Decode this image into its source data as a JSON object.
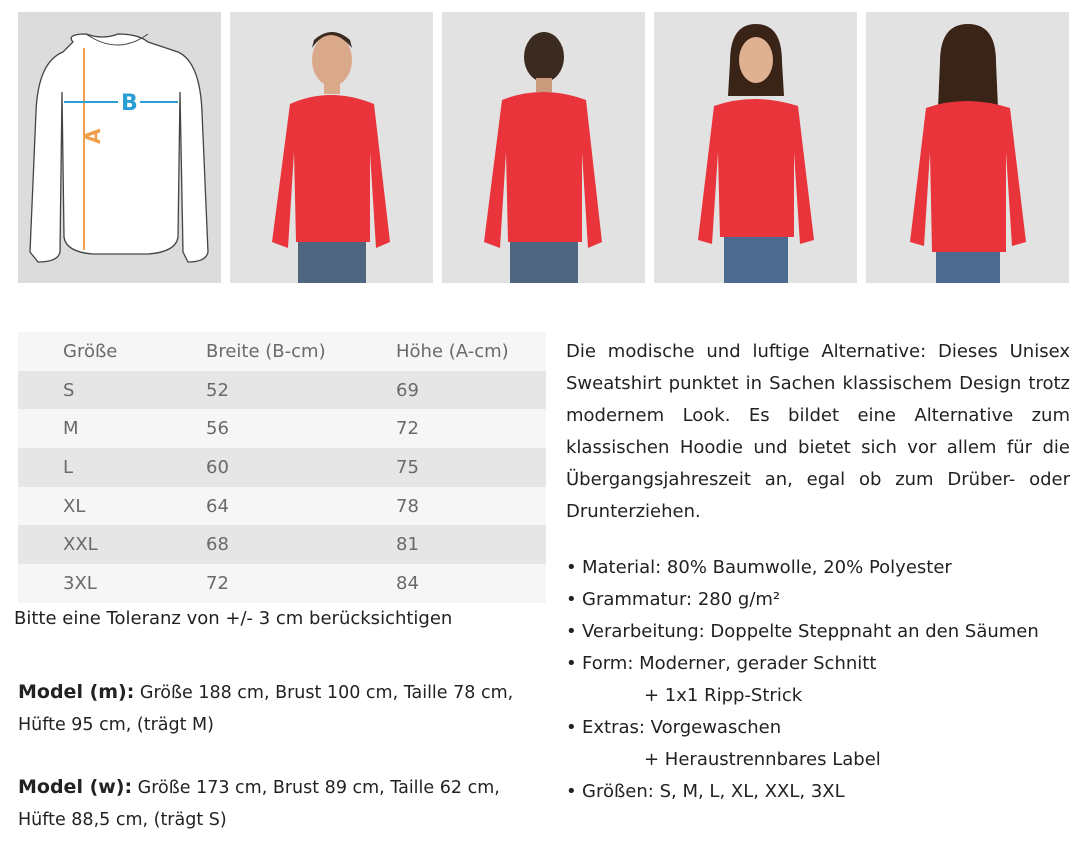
{
  "diagram": {
    "label_a": "A",
    "label_b": "B",
    "colors": {
      "a": "#f0a04b",
      "b": "#2a9fd6"
    }
  },
  "photos": [
    {
      "name": "model-m-front"
    },
    {
      "name": "model-m-back"
    },
    {
      "name": "model-w-front"
    },
    {
      "name": "model-w-back"
    }
  ],
  "sweatshirt_color": "#e8343a",
  "size_table": {
    "headers": [
      "Größe",
      "Breite (B-cm)",
      "Höhe (A-cm)"
    ],
    "rows": [
      [
        "S",
        "52",
        "69"
      ],
      [
        "M",
        "56",
        "72"
      ],
      [
        "L",
        "60",
        "75"
      ],
      [
        "XL",
        "64",
        "78"
      ],
      [
        "XXL",
        "68",
        "81"
      ],
      [
        "3XL",
        "72",
        "84"
      ]
    ]
  },
  "tolerance": "Bitte eine Toleranz von +/- 3 cm berücksichtigen",
  "model_m": {
    "label": "Model (m):",
    "line1": " Größe 188 cm, Brust 100 cm, Taille 78 cm,",
    "line2": "Hüfte 95 cm, (trägt M)"
  },
  "model_w": {
    "label": "Model (w):",
    "line1": " Größe 173 cm, Brust 89 cm, Taille 62 cm,",
    "line2": "Hüfte 88,5 cm, (trägt S)"
  },
  "description": "Die modische und luftige Alternative: Dieses Unisex Sweatshirt punktet in Sachen klassischem Design trotz modernem Look. Es bildet eine Alternative zum klassischen Hoodie und bietet sich vor allem für die Übergangsjahreszeit an, egal ob zum Drüber- oder Drunterziehen.",
  "features": [
    "Material: 80% Baumwolle, 20% Polyester",
    "Grammatur: 280 g/m²",
    "Verarbeitung: Doppelte Steppnaht an den Säumen",
    "Form: Moderner, gerader Schnitt",
    "+ 1x1 Ripp-Strick",
    "Extras: Vorgewaschen",
    "+ Heraustrennbares Label",
    "Größen:  S, M, L, XL, XXL, 3XL"
  ]
}
